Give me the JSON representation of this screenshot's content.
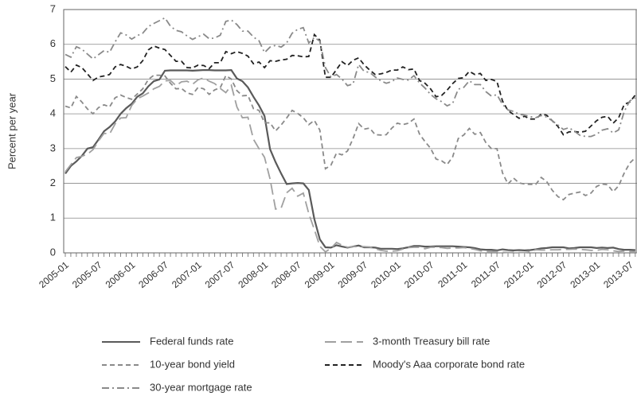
{
  "chart_data": {
    "type": "line",
    "ylabel": "Percent per year",
    "categories": [
      "2005-01",
      null,
      null,
      null,
      null,
      null,
      "2005-07",
      null,
      null,
      null,
      null,
      null,
      "2006-01",
      null,
      null,
      null,
      null,
      null,
      "2006-07",
      null,
      null,
      null,
      null,
      null,
      "2007-01",
      null,
      null,
      null,
      null,
      null,
      "2007-07",
      null,
      null,
      null,
      null,
      null,
      "2008-01",
      null,
      null,
      null,
      null,
      null,
      "2008-07",
      null,
      null,
      null,
      null,
      null,
      "2009-01",
      null,
      null,
      null,
      null,
      null,
      "2009-07",
      null,
      null,
      null,
      null,
      null,
      "2010-01",
      null,
      null,
      null,
      null,
      null,
      "2010-07",
      null,
      null,
      null,
      null,
      null,
      "2011-01",
      null,
      null,
      null,
      null,
      null,
      "2011-07",
      null,
      null,
      null,
      null,
      null,
      "2012-01",
      null,
      null,
      null,
      null,
      null,
      "2012-07",
      null,
      null,
      null,
      null,
      null,
      "2013-01",
      null,
      null,
      null,
      null,
      null,
      "2013-07",
      null
    ],
    "ylim": [
      0,
      7
    ],
    "yticks": [
      0,
      1,
      2,
      3,
      4,
      5,
      6,
      7
    ],
    "grid": true,
    "series": [
      {
        "name": "Federal funds rate",
        "color": "#5a5a5a",
        "style": "solid",
        "values": [
          2.28,
          2.5,
          2.63,
          2.79,
          3.0,
          3.04,
          3.26,
          3.5,
          3.62,
          3.78,
          4.0,
          4.16,
          4.29,
          4.49,
          4.59,
          4.79,
          4.94,
          4.99,
          5.24,
          5.25,
          5.25,
          5.25,
          5.25,
          5.24,
          5.25,
          5.26,
          5.26,
          5.25,
          5.25,
          5.25,
          5.26,
          5.02,
          4.94,
          4.76,
          4.49,
          4.24,
          3.94,
          2.98,
          2.61,
          2.28,
          1.98,
          2.0,
          2.01,
          2.0,
          1.81,
          0.97,
          0.39,
          0.16,
          0.15,
          0.22,
          0.18,
          0.15,
          0.18,
          0.21,
          0.16,
          0.16,
          0.15,
          0.12,
          0.12,
          0.12,
          0.11,
          0.13,
          0.16,
          0.2,
          0.2,
          0.18,
          0.18,
          0.19,
          0.19,
          0.19,
          0.19,
          0.18,
          0.17,
          0.16,
          0.14,
          0.1,
          0.09,
          0.09,
          0.07,
          0.1,
          0.08,
          0.07,
          0.08,
          0.07,
          0.08,
          0.1,
          0.13,
          0.14,
          0.16,
          0.16,
          0.16,
          0.13,
          0.14,
          0.16,
          0.16,
          0.16,
          0.14,
          0.15,
          0.14,
          0.15,
          0.11,
          0.09,
          0.09,
          0.08
        ]
      },
      {
        "name": "3-month Treasury bill rate",
        "color": "#a0a0a0",
        "style": "long-dash",
        "values": [
          2.33,
          2.54,
          2.74,
          2.78,
          2.84,
          2.97,
          3.22,
          3.44,
          3.42,
          3.71,
          3.88,
          3.89,
          4.24,
          4.43,
          4.51,
          4.6,
          4.72,
          4.79,
          4.95,
          4.96,
          4.81,
          4.92,
          4.94,
          4.85,
          4.98,
          5.03,
          4.94,
          4.87,
          4.73,
          4.61,
          4.82,
          4.2,
          3.89,
          3.9,
          3.27,
          3.0,
          2.75,
          2.12,
          1.26,
          1.29,
          1.73,
          1.86,
          1.63,
          1.72,
          1.13,
          0.67,
          0.19,
          0.03,
          0.13,
          0.3,
          0.22,
          0.16,
          0.18,
          0.18,
          0.18,
          0.17,
          0.12,
          0.07,
          0.05,
          0.05,
          0.06,
          0.11,
          0.15,
          0.16,
          0.16,
          0.12,
          0.16,
          0.16,
          0.15,
          0.13,
          0.14,
          0.14,
          0.15,
          0.13,
          0.1,
          0.06,
          0.04,
          0.04,
          0.04,
          0.02,
          0.01,
          0.02,
          0.01,
          0.01,
          0.03,
          0.09,
          0.08,
          0.08,
          0.09,
          0.09,
          0.1,
          0.1,
          0.11,
          0.1,
          0.09,
          0.07,
          0.07,
          0.1,
          0.09,
          0.06,
          0.04,
          0.05,
          0.04,
          0.04
        ]
      },
      {
        "name": "10-year bond yield",
        "color": "#8a8a8a",
        "style": "dash",
        "values": [
          4.22,
          4.17,
          4.5,
          4.34,
          4.14,
          4.0,
          4.18,
          4.26,
          4.2,
          4.46,
          4.54,
          4.47,
          4.42,
          4.57,
          4.72,
          4.99,
          5.11,
          5.11,
          5.09,
          4.88,
          4.72,
          4.73,
          4.6,
          4.56,
          4.76,
          4.72,
          4.56,
          4.69,
          4.75,
          5.1,
          5.0,
          4.67,
          4.52,
          4.53,
          4.15,
          4.1,
          3.74,
          3.74,
          3.51,
          3.68,
          3.88,
          4.1,
          4.01,
          3.89,
          3.69,
          3.81,
          3.53,
          2.42,
          2.52,
          2.87,
          2.82,
          2.93,
          3.29,
          3.72,
          3.56,
          3.59,
          3.4,
          3.39,
          3.4,
          3.59,
          3.73,
          3.69,
          3.73,
          3.85,
          3.42,
          3.2,
          3.01,
          2.7,
          2.65,
          2.54,
          2.76,
          3.29,
          3.39,
          3.58,
          3.41,
          3.46,
          3.17,
          3.0,
          3.0,
          2.3,
          1.98,
          2.15,
          2.01,
          1.98,
          1.97,
          1.97,
          2.17,
          2.05,
          1.8,
          1.62,
          1.53,
          1.68,
          1.72,
          1.75,
          1.65,
          1.72,
          1.91,
          1.98,
          1.96,
          1.76,
          1.93,
          2.3,
          2.58,
          2.74
        ]
      },
      {
        "name": "Moody's Aaa corporate bond rate",
        "color": "#222222",
        "style": "dash",
        "values": [
          5.36,
          5.2,
          5.4,
          5.33,
          5.15,
          4.96,
          5.06,
          5.09,
          5.13,
          5.35,
          5.42,
          5.37,
          5.29,
          5.35,
          5.53,
          5.84,
          5.95,
          5.89,
          5.85,
          5.68,
          5.51,
          5.51,
          5.33,
          5.32,
          5.4,
          5.39,
          5.3,
          5.47,
          5.47,
          5.79,
          5.73,
          5.79,
          5.74,
          5.66,
          5.44,
          5.49,
          5.33,
          5.53,
          5.51,
          5.55,
          5.57,
          5.68,
          5.67,
          5.64,
          5.65,
          6.28,
          6.12,
          5.05,
          5.05,
          5.27,
          5.5,
          5.39,
          5.54,
          5.61,
          5.41,
          5.26,
          5.13,
          5.15,
          5.19,
          5.26,
          5.26,
          5.35,
          5.27,
          5.29,
          4.96,
          4.88,
          4.72,
          4.49,
          4.53,
          4.68,
          4.87,
          5.02,
          5.04,
          5.22,
          5.13,
          5.16,
          4.96,
          4.99,
          4.93,
          4.37,
          4.09,
          3.98,
          3.87,
          3.93,
          3.85,
          3.85,
          3.99,
          3.96,
          3.8,
          3.64,
          3.4,
          3.48,
          3.49,
          3.47,
          3.5,
          3.65,
          3.8,
          3.9,
          3.93,
          3.73,
          3.89,
          4.27,
          4.34,
          4.54
        ]
      },
      {
        "name": "30-year mortgage rate",
        "color": "#8a8a8a",
        "style": "dash-dot",
        "values": [
          5.71,
          5.63,
          5.93,
          5.86,
          5.72,
          5.58,
          5.7,
          5.82,
          5.77,
          6.07,
          6.33,
          6.27,
          6.15,
          6.25,
          6.32,
          6.51,
          6.6,
          6.68,
          6.76,
          6.52,
          6.4,
          6.36,
          6.24,
          6.14,
          6.22,
          6.29,
          6.16,
          6.18,
          6.26,
          6.66,
          6.7,
          6.57,
          6.38,
          6.38,
          6.21,
          6.1,
          5.76,
          5.92,
          5.97,
          5.92,
          6.04,
          6.32,
          6.43,
          6.48,
          6.04,
          6.2,
          6.09,
          5.33,
          5.06,
          5.13,
          5.0,
          4.81,
          4.86,
          5.42,
          5.22,
          5.19,
          5.06,
          4.95,
          4.88,
          4.93,
          5.03,
          4.99,
          4.97,
          5.1,
          4.89,
          4.74,
          4.56,
          4.43,
          4.35,
          4.23,
          4.3,
          4.71,
          4.76,
          4.95,
          4.84,
          4.84,
          4.64,
          4.51,
          4.55,
          4.27,
          4.11,
          4.07,
          3.99,
          3.96,
          3.92,
          3.89,
          3.95,
          3.91,
          3.8,
          3.68,
          3.55,
          3.6,
          3.5,
          3.38,
          3.35,
          3.35,
          3.41,
          3.53,
          3.57,
          3.45,
          3.54,
          4.07,
          4.37,
          4.46
        ]
      }
    ]
  }
}
